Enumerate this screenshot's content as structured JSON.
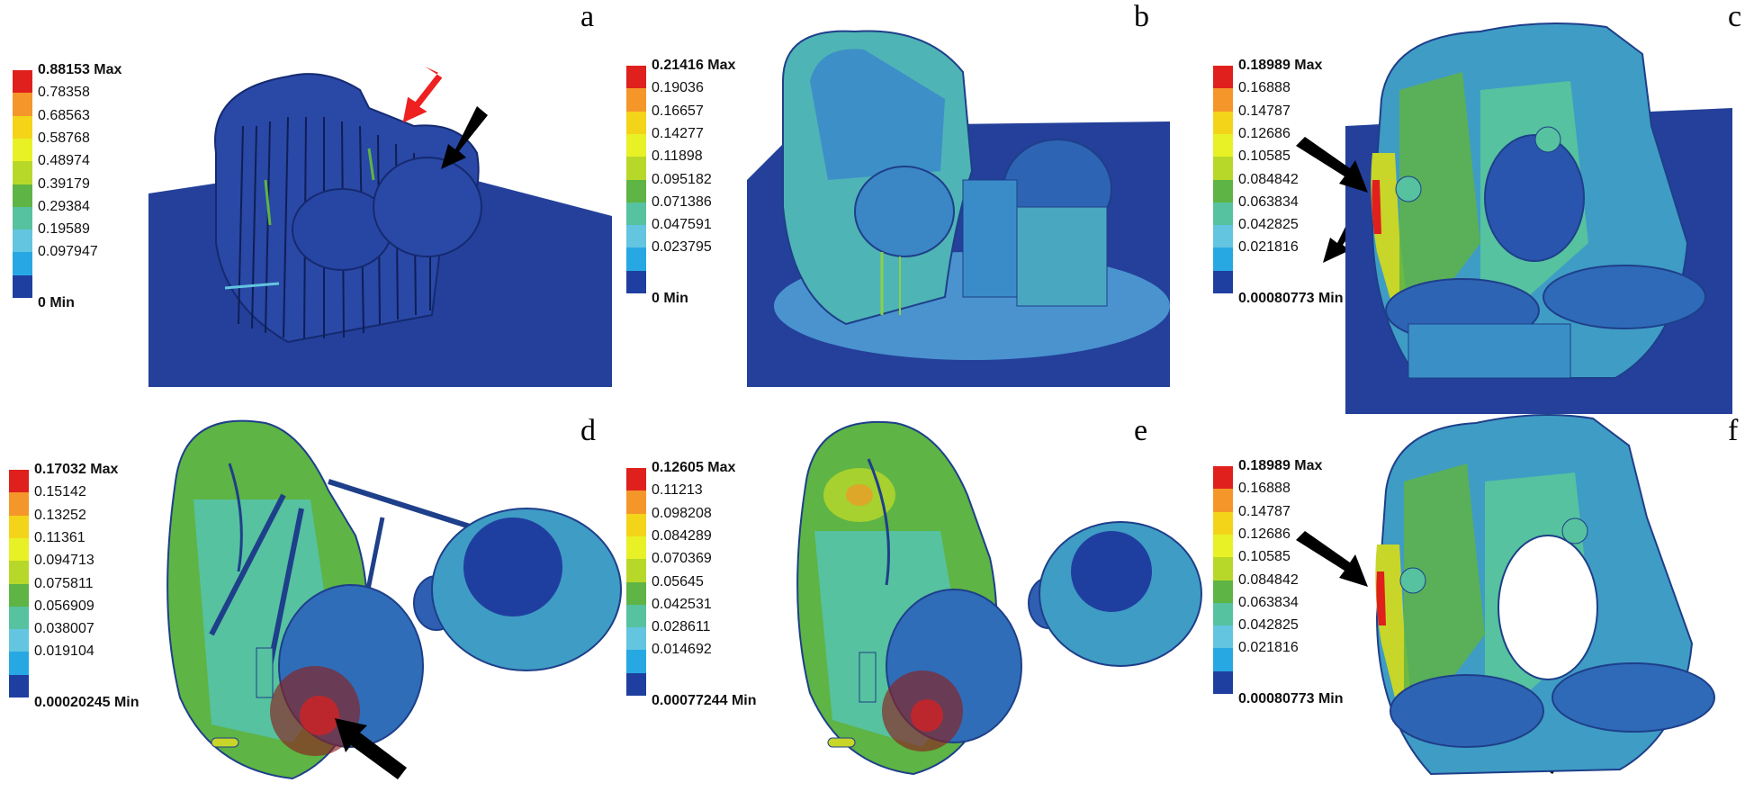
{
  "panels": [
    {
      "letter": "a",
      "legend": [
        "0.88153 Max",
        "0.78358",
        "0.68563",
        "0.58768",
        "0.48974",
        "0.39179",
        "0.29384",
        "0.19589",
        "0.097947",
        "0 Min"
      ]
    },
    {
      "letter": "b",
      "legend": [
        "0.21416 Max",
        "0.19036",
        "0.16657",
        "0.14277",
        "0.11898",
        "0.095182",
        "0.071386",
        "0.047591",
        "0.023795",
        "0 Min"
      ]
    },
    {
      "letter": "c",
      "legend": [
        "0.18989 Max",
        "0.16888",
        "0.14787",
        "0.12686",
        "0.10585",
        "0.084842",
        "0.063834",
        "0.042825",
        "0.021816",
        "0.00080773 Min"
      ]
    },
    {
      "letter": "d",
      "legend": [
        "0.17032 Max",
        "0.15142",
        "0.13252",
        "0.11361",
        "0.094713",
        "0.075811",
        "0.056909",
        "0.038007",
        "0.019104",
        "0.00020245 Min"
      ]
    },
    {
      "letter": "e",
      "legend": [
        "0.12605 Max",
        "0.11213",
        "0.098208",
        "0.084289",
        "0.070369",
        "0.05645",
        "0.042531",
        "0.028611",
        "0.014692",
        "0.00077244 Min"
      ]
    },
    {
      "letter": "f",
      "legend": [
        "0.18989 Max",
        "0.16888",
        "0.14787",
        "0.12686",
        "0.10585",
        "0.084842",
        "0.063834",
        "0.042825",
        "0.021816",
        "0.00080773 Min"
      ]
    }
  ],
  "colors": {
    "scale": [
      "#e0201c",
      "#f5962a",
      "#f3d419",
      "#e8f126",
      "#b8d829",
      "#5eb444",
      "#56c29f",
      "#63c5e0",
      "#27a8e3",
      "#1f3fa0"
    ],
    "arrow_black": "#000000",
    "arrow_red": "#ee2020",
    "model_base": "#1e3e96"
  }
}
